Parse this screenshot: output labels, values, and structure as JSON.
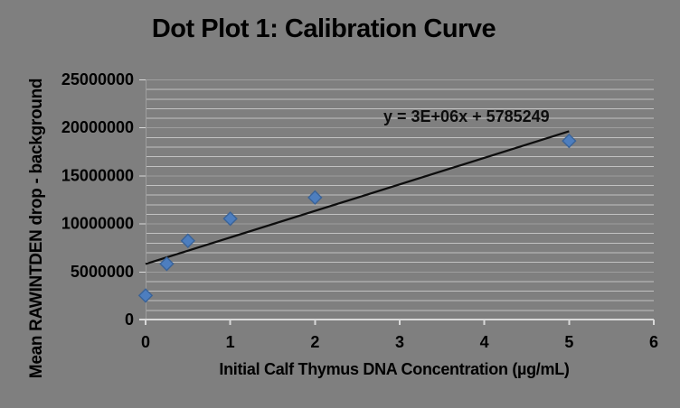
{
  "chart_data": {
    "type": "scatter",
    "title": "Dot Plot 1: Calibration Curve",
    "xlabel": "Initial Calf Thymus DNA Concentration (µg/mL)",
    "ylabel": "Mean RAWINTDEN drop - background",
    "xlim": [
      0,
      6
    ],
    "ylim": [
      0,
      25000000
    ],
    "x_ticks": [
      {
        "value": 0,
        "label": "0"
      },
      {
        "value": 1,
        "label": "1"
      },
      {
        "value": 2,
        "label": "2"
      },
      {
        "value": 3,
        "label": "3"
      },
      {
        "value": 4,
        "label": "4"
      },
      {
        "value": 5,
        "label": "5"
      },
      {
        "value": 6,
        "label": "6"
      }
    ],
    "y_ticks": [
      {
        "value": 0,
        "label": "0"
      },
      {
        "value": 5000000,
        "label": "5000000"
      },
      {
        "value": 10000000,
        "label": "10000000"
      },
      {
        "value": 15000000,
        "label": "15000000"
      },
      {
        "value": 20000000,
        "label": "20000000"
      },
      {
        "value": 25000000,
        "label": "25000000"
      }
    ],
    "y_minor_gridline_step": 1000000,
    "grid": "horizontal, minor gridlines on",
    "legend": "none",
    "points": [
      {
        "x": 0,
        "y": 2500000
      },
      {
        "x": 0.25,
        "y": 5800000
      },
      {
        "x": 0.5,
        "y": 8200000
      },
      {
        "x": 1,
        "y": 10500000
      },
      {
        "x": 2,
        "y": 12700000
      },
      {
        "x": 5,
        "y": 18600000
      }
    ],
    "marker": "diamond",
    "trendline": {
      "label": "y = 3E+06x + 5785249",
      "x_start": 0,
      "y_start": 5785249,
      "x_end": 5,
      "y_end": 19600000
    },
    "colors": {
      "background": "#7f7f7f",
      "marker_fill": "#4d7ebf",
      "marker_stroke": "#3a6398",
      "gridline_minor": "#c2c2c2",
      "gridline_major": "#9e9e9e",
      "axis_line": "#d9d9d9",
      "trendline": "#0d0d0d",
      "text": "#000000"
    }
  }
}
